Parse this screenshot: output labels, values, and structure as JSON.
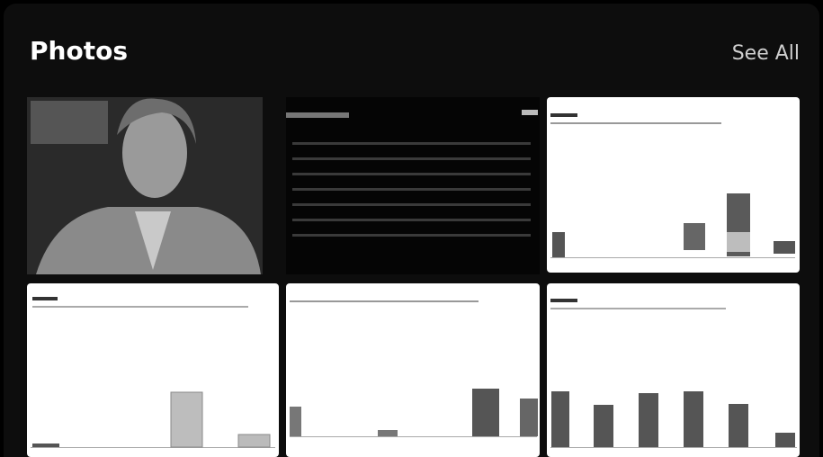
{
  "header": {
    "title": "Photos",
    "action": "See All"
  }
}
